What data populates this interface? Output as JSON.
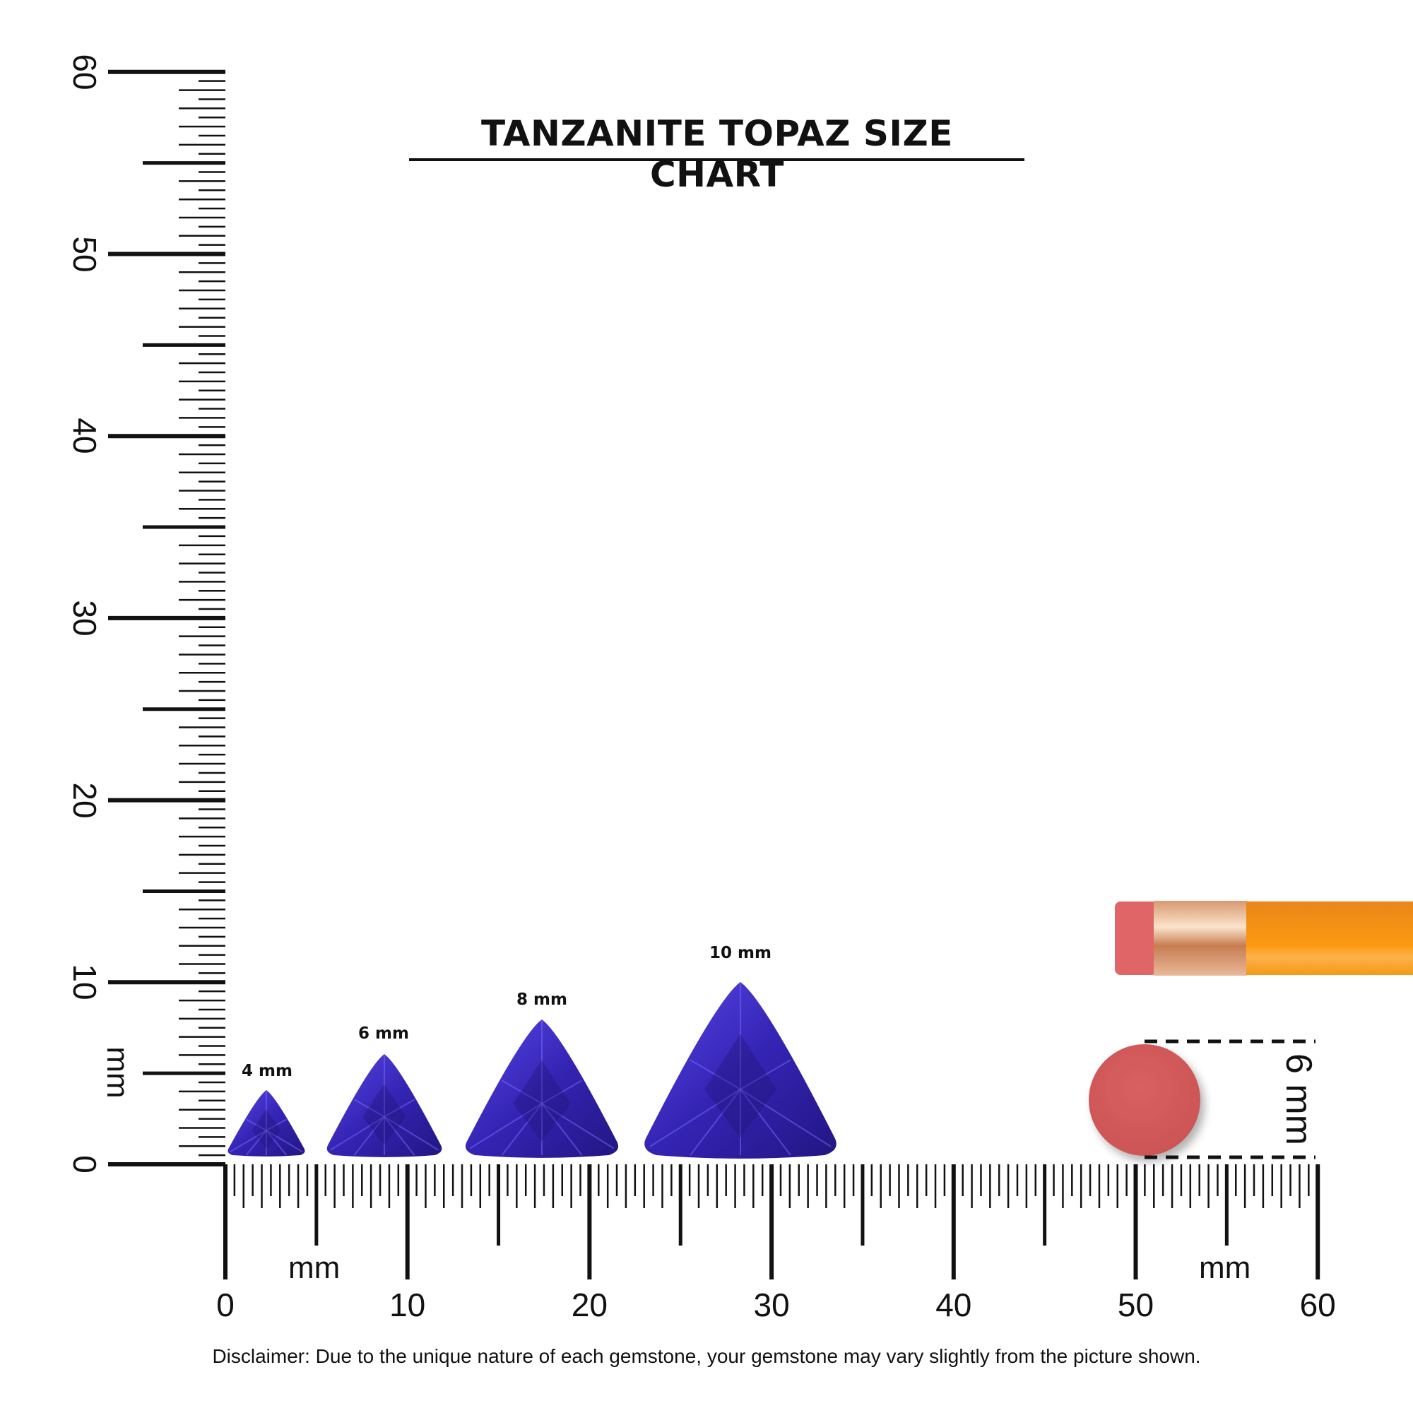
{
  "title": "TANZANITE TOPAZ SIZE CHART",
  "ruler": {
    "unit_label": "mm",
    "range": [
      0,
      60
    ],
    "major_labels": [
      "0",
      "10",
      "20",
      "30",
      "40",
      "50",
      "60"
    ]
  },
  "gems": [
    {
      "label": "4 mm",
      "size_mm": 4
    },
    {
      "label": "6 mm",
      "size_mm": 6
    },
    {
      "label": "8 mm",
      "size_mm": 8
    },
    {
      "label": "10 mm",
      "size_mm": 10
    }
  ],
  "reference": {
    "label": "6 mm",
    "object": "pencil eraser"
  },
  "disclaimer": "Disclaimer: Due to the unique nature of each gemstone, your gemstone may vary slightly from the picture shown.",
  "colors": {
    "gem": "#3a2ac0",
    "gem_dark": "#1e1470",
    "eraser": "#d55a5a",
    "pencil": "#f7941d",
    "ferrule": "#e8b38e"
  }
}
